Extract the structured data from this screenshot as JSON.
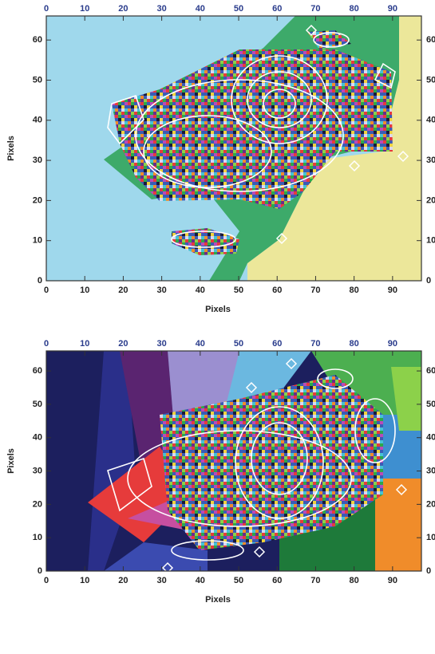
{
  "chart_data": [
    {
      "type": "image",
      "xlabel": "Pixels",
      "ylabel": "Pixels",
      "xlim": [
        0,
        97.5
      ],
      "ylim": [
        0,
        66
      ],
      "xticks": [
        0,
        10,
        20,
        30,
        40,
        50,
        60,
        70,
        80,
        90
      ],
      "yticks": [
        0,
        10,
        20,
        30,
        40,
        50,
        60
      ]
    },
    {
      "type": "image",
      "xlabel": "Pixels",
      "ylabel": "Pixels",
      "xlim": [
        0,
        97.5
      ],
      "ylim": [
        0,
        66
      ],
      "xticks": [
        0,
        10,
        20,
        30,
        40,
        50,
        60,
        70,
        80,
        90
      ],
      "yticks": [
        0,
        10,
        20,
        30,
        40,
        50,
        60
      ]
    }
  ]
}
